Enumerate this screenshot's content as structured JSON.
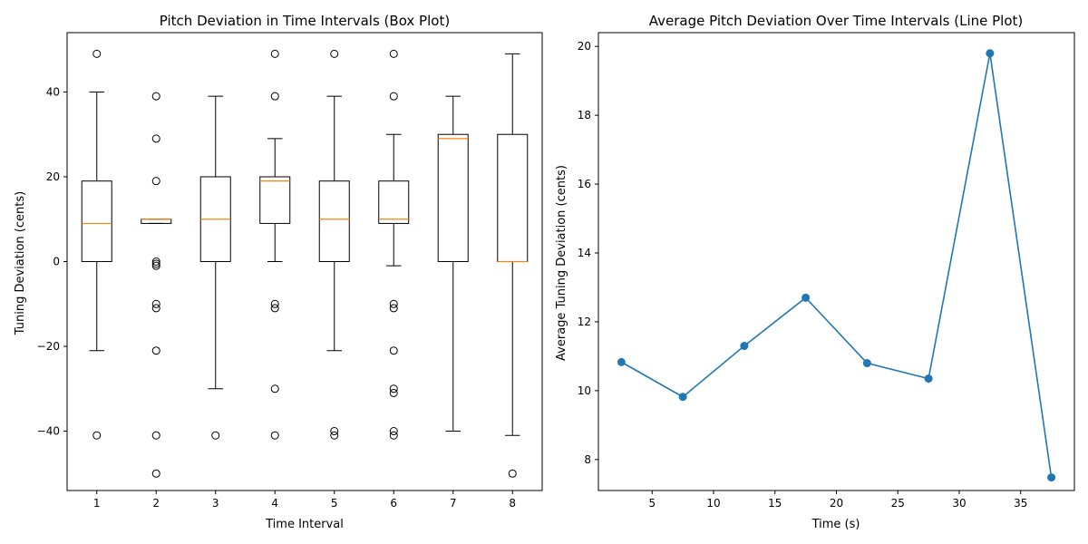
{
  "colors": {
    "box": "#000000",
    "median": "#ff7f0e",
    "line": "#1f77b4",
    "background": "#ffffff"
  },
  "chart_data": [
    {
      "type": "box",
      "title": "Pitch Deviation in Time Intervals (Box Plot)",
      "xlabel": "Time Interval",
      "ylabel": "Tuning Deviation (cents)",
      "categories": [
        "1",
        "2",
        "3",
        "4",
        "5",
        "6",
        "7",
        "8"
      ],
      "xlim": [
        0.5,
        8.5
      ],
      "ylim": [
        -54,
        54
      ],
      "yticks": [
        -40,
        -20,
        0,
        20,
        40
      ],
      "ytick_labels": [
        "−40",
        "−20",
        "0",
        "20",
        "40"
      ],
      "boxes": [
        {
          "whisker_low": -21,
          "q1": 0,
          "median": 9,
          "q3": 19,
          "whisker_high": 40,
          "outliers": [
            49,
            -41
          ]
        },
        {
          "whisker_low": 9,
          "q1": 9,
          "median": 10,
          "q3": 10,
          "whisker_high": 10,
          "outliers": [
            39,
            29,
            19,
            0,
            -0.5,
            -1,
            -10,
            -11,
            -21,
            -41,
            -50
          ]
        },
        {
          "whisker_low": -30,
          "q1": 0,
          "median": 10,
          "q3": 20,
          "whisker_high": 39,
          "outliers": [
            -41
          ]
        },
        {
          "whisker_low": 0,
          "q1": 9,
          "median": 19,
          "q3": 20,
          "whisker_high": 29,
          "outliers": [
            49,
            39,
            -10,
            -11,
            -30,
            -41
          ]
        },
        {
          "whisker_low": -21,
          "q1": 0,
          "median": 10,
          "q3": 19,
          "whisker_high": 39,
          "outliers": [
            49,
            -40,
            -41
          ]
        },
        {
          "whisker_low": -1,
          "q1": 9,
          "median": 10,
          "q3": 19,
          "whisker_high": 30,
          "outliers": [
            49,
            39,
            -10,
            -11,
            -21,
            -30,
            -31,
            -40,
            -41
          ]
        },
        {
          "whisker_low": -40,
          "q1": 0,
          "median": 29,
          "q3": 30,
          "whisker_high": 39,
          "outliers": []
        },
        {
          "whisker_low": -41,
          "q1": 0,
          "median": 0,
          "q3": 30,
          "whisker_high": 49,
          "outliers": [
            -50
          ]
        }
      ]
    },
    {
      "type": "line",
      "title": "Average Pitch Deviation Over Time Intervals (Line Plot)",
      "xlabel": "Time (s)",
      "ylabel": "Average Tuning Deviation (cents)",
      "x": [
        2.5,
        7.5,
        12.5,
        17.5,
        22.5,
        27.5,
        32.5,
        37.5
      ],
      "y": [
        10.83,
        9.82,
        11.3,
        12.7,
        10.8,
        10.35,
        19.8,
        7.48
      ],
      "xlim": [
        0.625,
        39.375
      ],
      "ylim": [
        7.1,
        20.4
      ],
      "xticks": [
        5,
        10,
        15,
        20,
        25,
        30,
        35
      ],
      "xtick_labels": [
        "5",
        "10",
        "15",
        "20",
        "25",
        "30",
        "35"
      ],
      "yticks": [
        8,
        10,
        12,
        14,
        16,
        18,
        20
      ],
      "ytick_labels": [
        "8",
        "10",
        "12",
        "14",
        "16",
        "18",
        "20"
      ]
    }
  ]
}
